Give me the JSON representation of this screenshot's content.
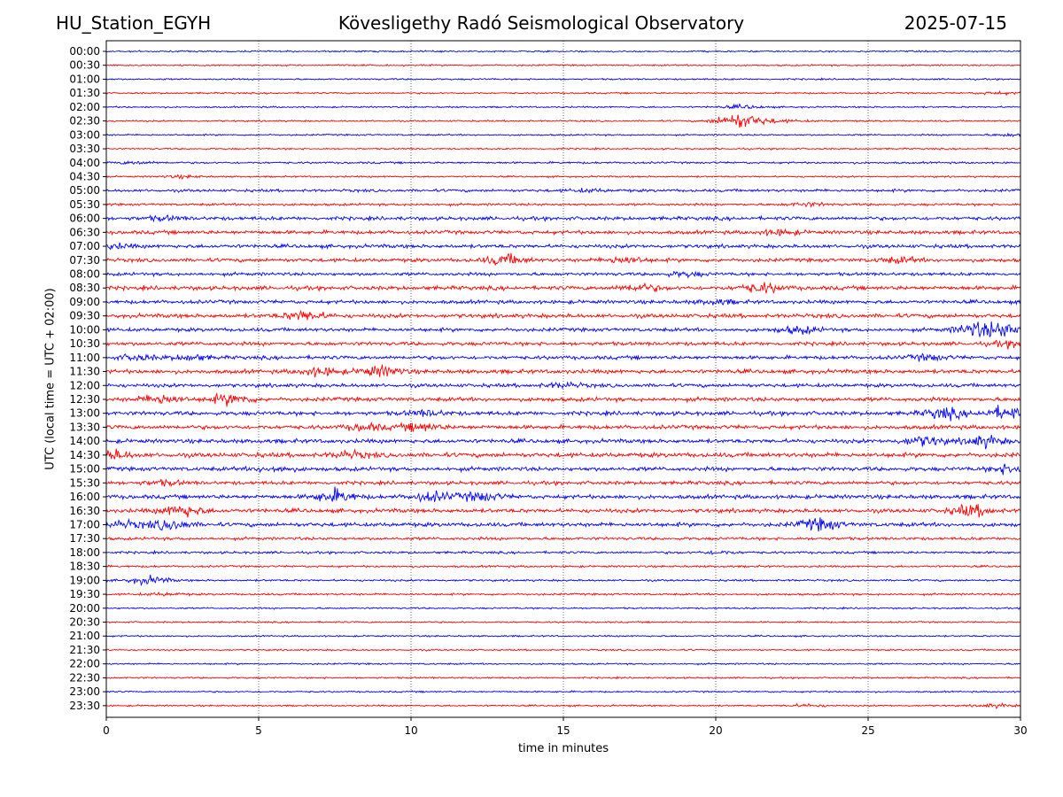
{
  "header": {
    "station": "HU_Station_EGYH",
    "observatory": "Kövesligethy Radó Seismological Observatory",
    "date": "2025-07-15"
  },
  "chart_data": {
    "type": "line",
    "title": "Kövesligethy Radó Seismological Observatory",
    "xlabel": "time in minutes",
    "ylabel": "UTC (local time = UTC + 02:00)",
    "xlim": [
      0,
      30
    ],
    "x_ticks": [
      0,
      5,
      10,
      15,
      20,
      25,
      30
    ],
    "grid": "vertical dotted lines at each x tick",
    "colors": {
      "even_rows": "#0000ff",
      "odd_rows": "#ff0000",
      "grid": "#000000"
    },
    "rows": [
      {
        "label": "00:00",
        "activity": 0.2,
        "events": []
      },
      {
        "label": "00:30",
        "activity": 0.2,
        "events": []
      },
      {
        "label": "01:00",
        "activity": 0.2,
        "events": []
      },
      {
        "label": "01:30",
        "activity": 0.2,
        "events": [
          {
            "t": 29.2,
            "amp": 0.3
          }
        ]
      },
      {
        "label": "02:00",
        "activity": 0.2,
        "events": [
          {
            "t": 20.9,
            "amp": 0.4
          }
        ]
      },
      {
        "label": "02:30",
        "activity": 0.2,
        "events": [
          {
            "t": 20.9,
            "amp": 2.0
          }
        ]
      },
      {
        "label": "03:00",
        "activity": 0.2,
        "events": [
          {
            "t": 29.7,
            "amp": 0.3
          }
        ]
      },
      {
        "label": "03:30",
        "activity": 0.2,
        "events": []
      },
      {
        "label": "04:00",
        "activity": 0.25,
        "events": [
          {
            "t": 1.0,
            "amp": 0.3
          }
        ]
      },
      {
        "label": "04:30",
        "activity": 0.2,
        "events": [
          {
            "t": 2.5,
            "amp": 0.3
          }
        ]
      },
      {
        "label": "05:00",
        "activity": 0.35,
        "events": [
          {
            "t": 15.8,
            "amp": 0.3
          }
        ]
      },
      {
        "label": "05:30",
        "activity": 0.3,
        "events": [
          {
            "t": 23.0,
            "amp": 0.4
          }
        ]
      },
      {
        "label": "06:00",
        "activity": 0.45,
        "events": [
          {
            "t": 1.9,
            "amp": 0.4
          }
        ]
      },
      {
        "label": "06:30",
        "activity": 0.45,
        "events": [
          {
            "t": 22.1,
            "amp": 0.6
          }
        ]
      },
      {
        "label": "07:00",
        "activity": 0.45,
        "events": [
          {
            "t": 0.2,
            "amp": 0.5
          }
        ]
      },
      {
        "label": "07:30",
        "activity": 0.45,
        "events": [
          {
            "t": 13.1,
            "amp": 1.2
          },
          {
            "t": 17.0,
            "amp": 0.8
          },
          {
            "t": 26.0,
            "amp": 0.6
          }
        ]
      },
      {
        "label": "08:00",
        "activity": 0.4,
        "events": [
          {
            "t": 19.0,
            "amp": 0.5
          }
        ]
      },
      {
        "label": "08:30",
        "activity": 0.5,
        "events": [
          {
            "t": 17.5,
            "amp": 0.8
          },
          {
            "t": 21.5,
            "amp": 1.1
          }
        ]
      },
      {
        "label": "09:00",
        "activity": 0.45,
        "events": [
          {
            "t": 20.0,
            "amp": 0.5
          }
        ]
      },
      {
        "label": "09:30",
        "activity": 0.5,
        "events": [
          {
            "t": 6.5,
            "amp": 1.1
          }
        ]
      },
      {
        "label": "10:00",
        "activity": 0.45,
        "events": [
          {
            "t": 22.7,
            "amp": 0.8
          },
          {
            "t": 28.5,
            "amp": 1.3
          },
          {
            "t": 29.6,
            "amp": 1.6
          }
        ]
      },
      {
        "label": "10:30",
        "activity": 0.45,
        "events": [
          {
            "t": 29.7,
            "amp": 0.6
          }
        ]
      },
      {
        "label": "11:00",
        "activity": 0.45,
        "events": [
          {
            "t": 1.0,
            "amp": 0.6
          },
          {
            "t": 2.8,
            "amp": 0.6
          },
          {
            "t": 27.0,
            "amp": 0.6
          }
        ]
      },
      {
        "label": "11:30",
        "activity": 0.5,
        "events": [
          {
            "t": 9.0,
            "amp": 1.2
          },
          {
            "t": 7.0,
            "amp": 0.9
          }
        ]
      },
      {
        "label": "12:00",
        "activity": 0.45,
        "events": [
          {
            "t": 15.0,
            "amp": 0.5
          }
        ]
      },
      {
        "label": "12:30",
        "activity": 0.5,
        "events": [
          {
            "t": 1.8,
            "amp": 1.1
          },
          {
            "t": 4.1,
            "amp": 1.2
          }
        ]
      },
      {
        "label": "13:00",
        "activity": 0.5,
        "events": [
          {
            "t": 27.5,
            "amp": 1.2
          },
          {
            "t": 29.5,
            "amp": 1.4
          },
          {
            "t": 10.5,
            "amp": 0.6
          }
        ]
      },
      {
        "label": "13:30",
        "activity": 0.5,
        "events": [
          {
            "t": 10.3,
            "amp": 0.9
          },
          {
            "t": 8.5,
            "amp": 0.7
          }
        ]
      },
      {
        "label": "14:00",
        "activity": 0.5,
        "events": [
          {
            "t": 26.8,
            "amp": 1.1
          },
          {
            "t": 28.8,
            "amp": 1.2
          }
        ]
      },
      {
        "label": "14:30",
        "activity": 0.55,
        "events": [
          {
            "t": 0.05,
            "amp": 1.3
          },
          {
            "t": 8.0,
            "amp": 0.7
          }
        ]
      },
      {
        "label": "15:00",
        "activity": 0.5,
        "events": [
          {
            "t": 29.7,
            "amp": 1.1
          },
          {
            "t": 5.5,
            "amp": 0.5
          }
        ]
      },
      {
        "label": "15:30",
        "activity": 0.45,
        "events": [
          {
            "t": 1.9,
            "amp": 0.5
          }
        ]
      },
      {
        "label": "16:00",
        "activity": 0.5,
        "events": [
          {
            "t": 7.5,
            "amp": 1.5
          },
          {
            "t": 10.7,
            "amp": 1.0
          },
          {
            "t": 12.3,
            "amp": 1.0
          }
        ]
      },
      {
        "label": "16:30",
        "activity": 0.5,
        "events": [
          {
            "t": 2.5,
            "amp": 1.4
          },
          {
            "t": 28.4,
            "amp": 1.3
          }
        ]
      },
      {
        "label": "17:00",
        "activity": 0.5,
        "events": [
          {
            "t": 2.1,
            "amp": 1.1
          },
          {
            "t": 23.4,
            "amp": 1.3
          },
          {
            "t": 0.6,
            "amp": 0.7
          }
        ]
      },
      {
        "label": "17:30",
        "activity": 0.35,
        "events": []
      },
      {
        "label": "18:00",
        "activity": 0.3,
        "events": [
          {
            "t": 20.1,
            "amp": 0.3
          }
        ]
      },
      {
        "label": "18:30",
        "activity": 0.25,
        "events": []
      },
      {
        "label": "19:00",
        "activity": 0.25,
        "events": [
          {
            "t": 1.4,
            "amp": 0.9
          }
        ]
      },
      {
        "label": "19:30",
        "activity": 0.25,
        "events": [
          {
            "t": 1.9,
            "amp": 0.3
          }
        ]
      },
      {
        "label": "20:00",
        "activity": 0.2,
        "events": []
      },
      {
        "label": "20:30",
        "activity": 0.2,
        "events": []
      },
      {
        "label": "21:00",
        "activity": 0.2,
        "events": []
      },
      {
        "label": "21:30",
        "activity": 0.2,
        "events": []
      },
      {
        "label": "22:00",
        "activity": 0.2,
        "events": []
      },
      {
        "label": "22:30",
        "activity": 0.2,
        "events": []
      },
      {
        "label": "23:00",
        "activity": 0.2,
        "events": []
      },
      {
        "label": "23:30",
        "activity": 0.2,
        "events": [
          {
            "t": 23.0,
            "amp": 0.3
          },
          {
            "t": 29.2,
            "amp": 0.4
          }
        ]
      }
    ]
  }
}
